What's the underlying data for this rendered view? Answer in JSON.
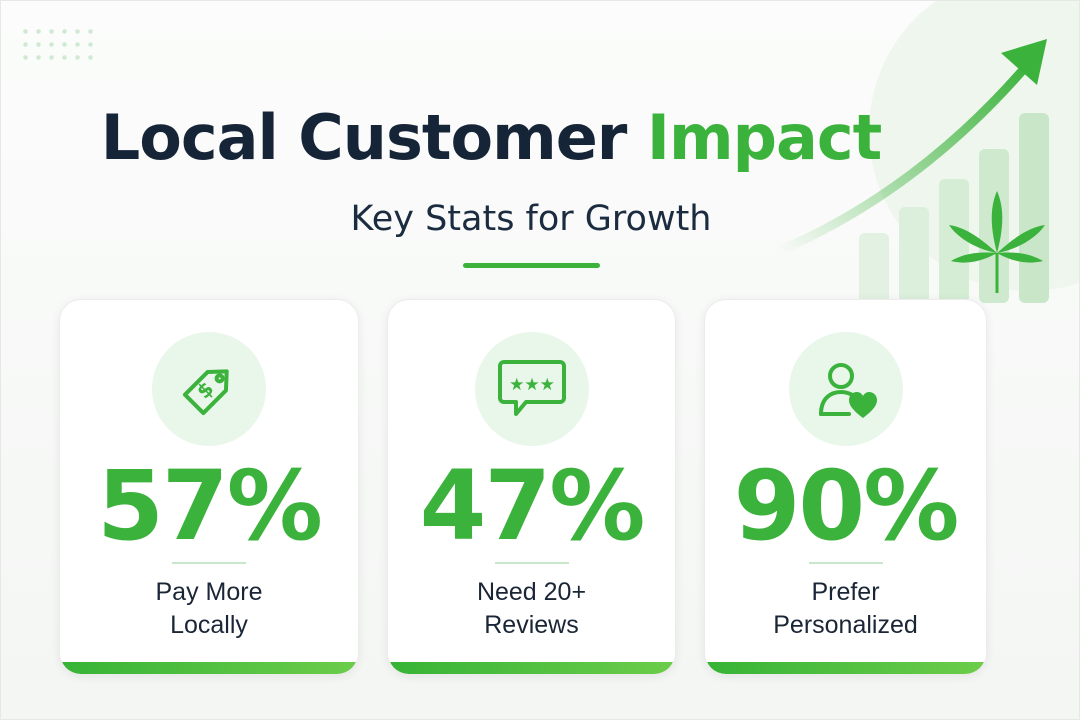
{
  "header": {
    "title_main": "Local Customer",
    "title_accent": "Impact",
    "subtitle": "Key Stats for Growth"
  },
  "colors": {
    "accent": "#3bb23b",
    "title": "#162438",
    "icon_bg": "#e9f6ea"
  },
  "cards": [
    {
      "icon": "price-tag-icon",
      "value": "57%",
      "label_line1": "Pay More",
      "label_line2": "Locally"
    },
    {
      "icon": "rating-bubble-icon",
      "value": "47%",
      "label_line1": "Need 20+",
      "label_line2": "Reviews"
    },
    {
      "icon": "user-heart-icon",
      "value": "90%",
      "label_line1": "Prefer",
      "label_line2": "Personalized"
    }
  ]
}
